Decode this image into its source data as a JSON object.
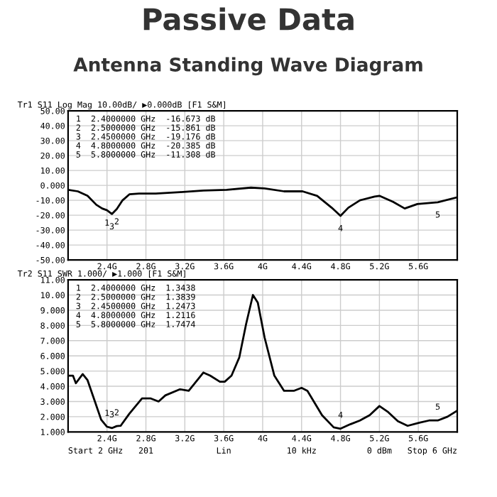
{
  "chart_data": [
    {
      "type": "line",
      "title": "Passive Data",
      "subtitle": "Antenna Standing Wave Diagram",
      "x": [
        2.0,
        2.1,
        2.2,
        2.29,
        2.35,
        2.4,
        2.45,
        2.5,
        2.56,
        2.63,
        2.73,
        2.9,
        3.15,
        3.39,
        3.63,
        3.88,
        4.02,
        4.22,
        4.41,
        4.56,
        4.71,
        4.8,
        4.88,
        5.0,
        5.15,
        5.2,
        5.34,
        5.46,
        5.59,
        5.8,
        6.0
      ],
      "series": [
        {
          "color": "#000000",
          "values": [
            -3,
            -4,
            -7,
            -13,
            -15.5,
            -16.7,
            -19.2,
            -15.9,
            -10,
            -6,
            -5.5,
            -5.5,
            -4.5,
            -3.5,
            -3,
            -1.5,
            -2,
            -4,
            -4,
            -7,
            -15,
            -20.4,
            -15,
            -10,
            -7.5,
            -7,
            -11,
            -15.5,
            -12.5,
            -11.3,
            -8
          ]
        }
      ],
      "xlim": [
        2,
        6
      ],
      "ylim": [
        -50,
        50
      ],
      "xticks": [
        {
          "value": 2.4,
          "label": "2.4G"
        },
        {
          "value": 2.8,
          "label": "2.8G"
        },
        {
          "value": 3.2,
          "label": "3.2G"
        },
        {
          "value": 3.6,
          "label": "3.6G"
        },
        {
          "value": 4,
          "label": "4G"
        },
        {
          "value": 4.4,
          "label": "4.4G"
        },
        {
          "value": 4.8,
          "label": "4.8G"
        },
        {
          "value": 5.2,
          "label": "5.2G"
        },
        {
          "value": 5.6,
          "label": "5.6G"
        }
      ],
      "yticks": [
        {
          "value": -50,
          "label": "-50.00"
        },
        {
          "value": -40,
          "label": "-40.00"
        },
        {
          "value": -30,
          "label": "-30.00"
        },
        {
          "value": -20,
          "label": "-20.00"
        },
        {
          "value": -10,
          "label": "-10.00"
        },
        {
          "value": 0,
          "label": "0.000"
        },
        {
          "value": 10,
          "label": "10.00"
        },
        {
          "value": 20,
          "label": "20.00"
        },
        {
          "value": 30,
          "label": "30.00"
        },
        {
          "value": 40,
          "label": "40.00"
        },
        {
          "value": 50,
          "label": "50.00"
        }
      ],
      "grid": true,
      "annotations": [
        "Tr1 S11 Log Mag 10.00dB/ ▶0.000dB [F1 S&M]",
        "1  2.4000000 GHz  -16.673 dB",
        "2  2.5000000 GHz  -15.861 dB",
        "3  2.4500000 GHz  -19.176 dB",
        "4  4.8000000 GHz  -20.385 dB",
        "5  5.8000000 GHz  -11.308 dB",
        {
          "text": "1",
          "x": 2.4,
          "y": -16.7
        },
        {
          "text": "2",
          "x": 2.5,
          "y": -15.9
        },
        {
          "text": "3",
          "x": 2.45,
          "y": -19.2
        },
        {
          "text": "4",
          "x": 4.8,
          "y": -20.4
        },
        {
          "text": "5",
          "x": 5.8,
          "y": -11.3
        }
      ]
    },
    {
      "type": "line",
      "x": [
        2.0,
        2.05,
        2.08,
        2.15,
        2.2,
        2.27,
        2.34,
        2.4,
        2.45,
        2.5,
        2.54,
        2.63,
        2.76,
        2.85,
        2.93,
        3.0,
        3.15,
        3.24,
        3.39,
        3.46,
        3.56,
        3.61,
        3.68,
        3.76,
        3.83,
        3.9,
        3.95,
        4.02,
        4.12,
        4.22,
        4.32,
        4.4,
        4.46,
        4.61,
        4.73,
        4.8,
        4.9,
        5.0,
        5.1,
        5.2,
        5.29,
        5.39,
        5.49,
        5.61,
        5.71,
        5.8,
        5.9,
        6.0
      ],
      "series": [
        {
          "color": "#000000",
          "values": [
            4.7,
            4.7,
            4.2,
            4.8,
            4.4,
            3.1,
            1.8,
            1.34,
            1.25,
            1.38,
            1.4,
            2.2,
            3.2,
            3.2,
            3.0,
            3.4,
            3.8,
            3.7,
            4.9,
            4.7,
            4.3,
            4.3,
            4.7,
            5.9,
            8.1,
            10,
            9.5,
            7.2,
            4.7,
            3.7,
            3.7,
            3.9,
            3.7,
            2.1,
            1.3,
            1.21,
            1.5,
            1.75,
            2.1,
            2.7,
            2.3,
            1.7,
            1.4,
            1.6,
            1.75,
            1.75,
            2.0,
            2.4
          ]
        }
      ],
      "xlim": [
        2,
        6
      ],
      "ylim": [
        1,
        11
      ],
      "xticks": [
        {
          "value": 2.4,
          "label": "2.4G"
        },
        {
          "value": 2.8,
          "label": "2.8G"
        },
        {
          "value": 3.2,
          "label": "3.2G"
        },
        {
          "value": 3.6,
          "label": "3.6G"
        },
        {
          "value": 4,
          "label": "4G"
        },
        {
          "value": 4.4,
          "label": "4.4G"
        },
        {
          "value": 4.8,
          "label": "4.8G"
        },
        {
          "value": 5.2,
          "label": "5.2G"
        },
        {
          "value": 5.6,
          "label": "5.6G"
        }
      ],
      "yticks": [
        {
          "value": 1,
          "label": "1.000"
        },
        {
          "value": 2,
          "label": "2.000"
        },
        {
          "value": 3,
          "label": "3.000"
        },
        {
          "value": 4,
          "label": "4.000"
        },
        {
          "value": 5,
          "label": "5.000"
        },
        {
          "value": 6,
          "label": "6.000"
        },
        {
          "value": 7,
          "label": "7.000"
        },
        {
          "value": 8,
          "label": "8.000"
        },
        {
          "value": 9,
          "label": "9.000"
        },
        {
          "value": 10,
          "label": "10.00"
        },
        {
          "value": 11,
          "label": "11.00"
        }
      ],
      "grid": true,
      "annotations": [
        "Tr2 S11 SWR 1.000/ ▶1.000 [F1 S&M]",
        "1  2.4000000 GHz  1.3438",
        "2  2.5000000 GHz  1.3839",
        "3  2.4500000 GHz  1.2473",
        "4  4.8000000 GHz  1.2116",
        "5  5.8000000 GHz  1.7474",
        {
          "text": "1",
          "x": 2.4,
          "y": 1.34
        },
        {
          "text": "2",
          "x": 2.5,
          "y": 1.38
        },
        {
          "text": "3",
          "x": 2.45,
          "y": 1.25
        },
        {
          "text": "4",
          "x": 4.8,
          "y": 1.21
        },
        {
          "text": "5",
          "x": 5.8,
          "y": 1.75
        },
        "Start 2 GHz",
        "201",
        "Lin",
        "10 kHz",
        "0 dBm",
        "Stop 6 GHz"
      ]
    }
  ]
}
